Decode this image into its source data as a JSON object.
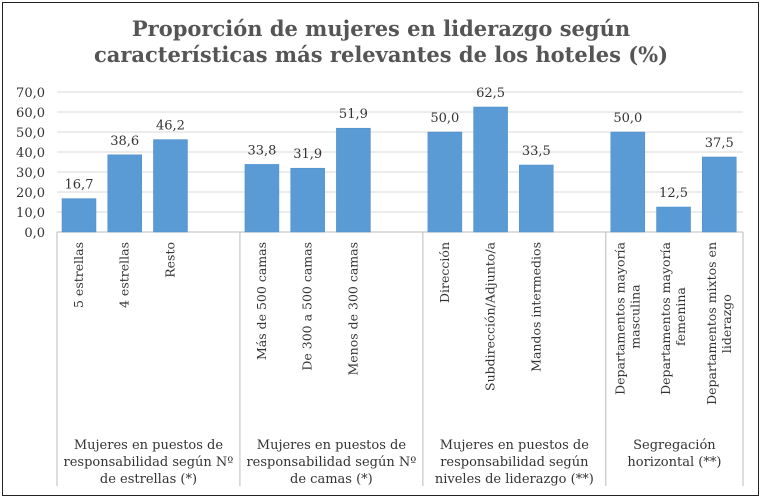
{
  "chart_data": {
    "type": "bar",
    "title": [
      "Proporción de mujeres en liderazgo según",
      "características más relevantes de los hoteles (%)"
    ],
    "xlabel": "",
    "ylabel": "",
    "ylim": [
      0,
      70
    ],
    "yticks": [
      "0,0",
      "10,0",
      "20,0",
      "30,0",
      "40,0",
      "50,0",
      "60,0",
      "70,0"
    ],
    "grid": true,
    "legend": "none",
    "bar_color": "#5b9bd5",
    "groups": [
      {
        "label": [
          "Mujeres en puestos de",
          "responsabilidad según Nº",
          "de estrellas (*)"
        ],
        "categories": [
          [
            "5 estrellas"
          ],
          [
            "4 estrellas"
          ],
          [
            "Resto"
          ]
        ],
        "values": [
          16.7,
          38.6,
          46.2
        ],
        "data_labels": [
          "16,7",
          "38,6",
          "46,2"
        ]
      },
      {
        "label": [
          "Mujeres en puestos de",
          "responsabilidad según Nº",
          "de camas (*)"
        ],
        "categories": [
          [
            "Más de 500 camas"
          ],
          [
            "De 300 a 500 camas"
          ],
          [
            "Menos de 300 camas"
          ]
        ],
        "values": [
          33.8,
          31.9,
          51.9
        ],
        "data_labels": [
          "33,8",
          "31,9",
          "51,9"
        ]
      },
      {
        "label": [
          "Mujeres en puestos de",
          "responsabilidad según",
          "niveles de liderazgo (**)"
        ],
        "categories": [
          [
            "Dirección"
          ],
          [
            "Subdirección/Adjunto/a"
          ],
          [
            "Mandos intermedios"
          ]
        ],
        "values": [
          50.0,
          62.5,
          33.5
        ],
        "data_labels": [
          "50,0",
          "62,5",
          "33,5"
        ]
      },
      {
        "label": [
          "Segregación",
          "horizontal (**)"
        ],
        "categories": [
          [
            "Departamentos mayoría",
            "masculina"
          ],
          [
            "Departamentos mayoría",
            "femenina"
          ],
          [
            "Departamentos mixtos en",
            "liderazgo"
          ]
        ],
        "values": [
          50.0,
          12.5,
          37.5
        ],
        "data_labels": [
          "50,0",
          "12,5",
          "37,5"
        ]
      }
    ]
  }
}
